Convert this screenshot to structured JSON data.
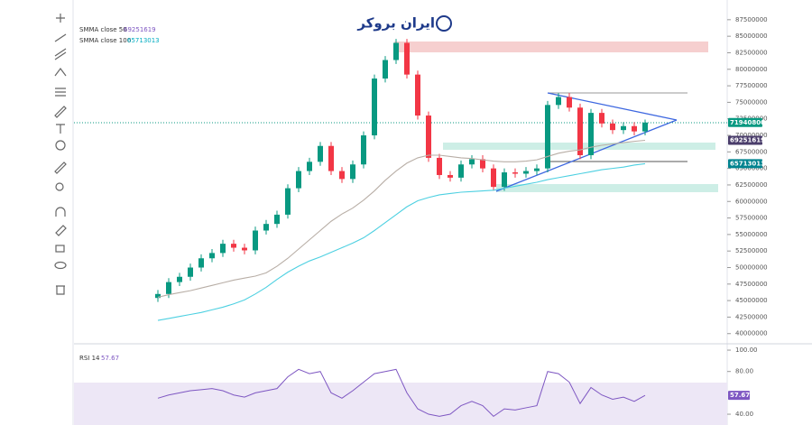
{
  "logo": "ایران بروکر",
  "chart_data": [
    {
      "type": "candlestick",
      "open": [
        45400000,
        46000000,
        47800000,
        48600000,
        50000000,
        51400000,
        52200000,
        53600000,
        53000000,
        52600000,
        55600000,
        56600000,
        58000000,
        62000000,
        64600000,
        66000000,
        68400000,
        64600000,
        63400000,
        65600000,
        70000000,
        78600000,
        81400000,
        84000000,
        79200000,
        73000000,
        66600000,
        64000000,
        63600000,
        65600000,
        66400000,
        65000000,
        62200000,
        64400000,
        64200000,
        64600000,
        65000000,
        74600000,
        75800000,
        74200000,
        67000000,
        73400000,
        71800000,
        70800000,
        71400000,
        70600000
      ],
      "high": [
        46600000,
        48400000,
        49200000,
        50600000,
        52000000,
        52800000,
        54200000,
        54200000,
        53600000,
        56200000,
        57200000,
        58600000,
        62600000,
        65200000,
        66600000,
        69000000,
        69000000,
        65200000,
        66200000,
        70600000,
        79200000,
        82000000,
        84600000,
        84600000,
        79800000,
        73600000,
        67200000,
        64600000,
        66200000,
        67000000,
        67000000,
        65600000,
        65000000,
        65000000,
        65200000,
        65600000,
        75200000,
        76400000,
        76400000,
        74800000,
        74000000,
        74000000,
        72400000,
        72000000,
        72000000,
        72400000
      ],
      "low": [
        44800000,
        45400000,
        47200000,
        48000000,
        49400000,
        50800000,
        51600000,
        52400000,
        52000000,
        52000000,
        55000000,
        56000000,
        57400000,
        61400000,
        64000000,
        65400000,
        64000000,
        62800000,
        62800000,
        65000000,
        69400000,
        78000000,
        80800000,
        78600000,
        72400000,
        66000000,
        63400000,
        63000000,
        63000000,
        65000000,
        64400000,
        61600000,
        61600000,
        63600000,
        63600000,
        64000000,
        64400000,
        74000000,
        73600000,
        66400000,
        66400000,
        71200000,
        70200000,
        70200000,
        70000000,
        70000000
      ],
      "close": [
        46000000,
        47800000,
        48600000,
        50000000,
        51400000,
        52200000,
        53600000,
        53000000,
        52600000,
        55600000,
        56600000,
        58000000,
        62000000,
        64600000,
        66000000,
        68400000,
        64600000,
        63400000,
        65600000,
        70000000,
        78600000,
        81400000,
        84000000,
        79200000,
        73000000,
        66600000,
        64000000,
        63600000,
        65600000,
        66400000,
        65000000,
        62200000,
        64400000,
        64200000,
        64600000,
        65000000,
        74600000,
        75800000,
        74200000,
        67000000,
        73400000,
        71800000,
        70800000,
        71400000,
        70600000,
        71940800
      ],
      "up_color": "#089981",
      "down_color": "#f23645",
      "series": [
        {
          "name": "SMMA close 50",
          "color": "#b8aea6",
          "values": [
            45500000,
            45900000,
            46200000,
            46500000,
            46900000,
            47300000,
            47700000,
            48100000,
            48400000,
            48700000,
            49200000,
            50200000,
            51400000,
            52800000,
            54200000,
            55600000,
            57000000,
            58100000,
            59000000,
            60200000,
            61600000,
            63200000,
            64600000,
            65800000,
            66600000,
            67000000,
            67000000,
            66800000,
            66600000,
            66500000,
            66300000,
            66100000,
            66000000,
            66000000,
            66100000,
            66300000,
            66800000,
            67300000,
            67600000,
            67800000,
            68200000,
            68500000,
            68700000,
            68900000,
            69100000,
            69251619
          ]
        },
        {
          "name": "SMMA close 100",
          "color": "#4dd0e1",
          "values": [
            42000000,
            42300000,
            42600000,
            42900000,
            43200000,
            43600000,
            44000000,
            44500000,
            45100000,
            46000000,
            47000000,
            48200000,
            49300000,
            50200000,
            51000000,
            51600000,
            52300000,
            53000000,
            53700000,
            54500000,
            55600000,
            56800000,
            58000000,
            59200000,
            60100000,
            60600000,
            61000000,
            61200000,
            61400000,
            61500000,
            61600000,
            61700000,
            62000000,
            62300000,
            62600000,
            62900000,
            63300000,
            63600000,
            63900000,
            64200000,
            64500000,
            64800000,
            65000000,
            65200000,
            65500000,
            65713013
          ]
        }
      ],
      "ylim": [
        38600000,
        89800000
      ],
      "yticks": [
        40000000,
        42500000,
        45000000,
        47500000,
        50000000,
        52500000,
        55000000,
        57500000,
        60000000,
        62500000,
        65000000,
        67500000,
        70000000,
        72500000,
        75000000,
        77500000,
        80000000,
        82500000,
        85000000,
        87500000
      ]
    },
    {
      "type": "line",
      "name": "RSI 14",
      "color": "#7e57c2",
      "values": [
        55,
        58,
        60,
        62,
        63,
        64,
        62,
        58,
        56,
        60,
        62,
        64,
        75,
        82,
        78,
        80,
        60,
        55,
        62,
        70,
        78,
        80,
        82,
        60,
        45,
        40,
        38,
        40,
        48,
        52,
        48,
        38,
        45,
        44,
        46,
        48,
        80,
        78,
        70,
        50,
        65,
        58,
        54,
        56,
        52,
        57.67
      ],
      "ylim": [
        29.9,
        105.1
      ],
      "yticks": [
        {
          "value": 100,
          "label": "100.00"
        },
        {
          "value": 80,
          "label": "80.00"
        },
        {
          "value": 40,
          "label": "40.00"
        }
      ]
    }
  ]
}
